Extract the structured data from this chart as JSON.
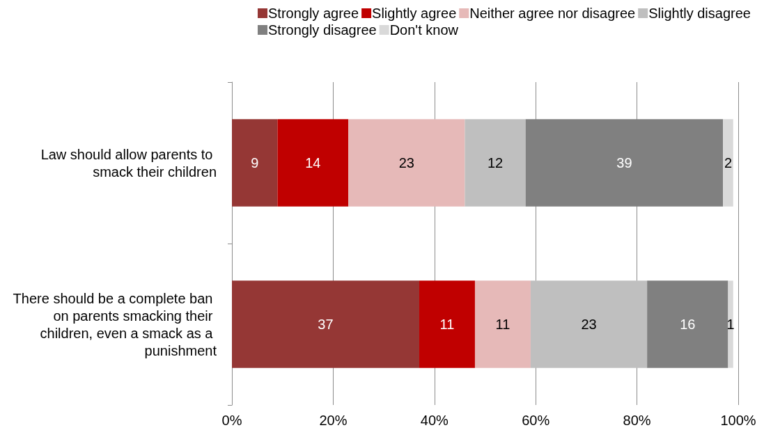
{
  "chart_data": {
    "type": "bar",
    "orientation": "horizontal",
    "stacked": true,
    "data_labels": true,
    "grid": "x",
    "legend": "top",
    "categories": [
      "Law should allow parents to smack their children",
      "There should be a complete ban on parents smacking their children, even a smack as a punishment"
    ],
    "series": [
      {
        "name": "Strongly agree",
        "color": "#953735",
        "values": [
          9,
          37
        ]
      },
      {
        "name": "Slightly agree",
        "color": "#c00000",
        "values": [
          14,
          11
        ]
      },
      {
        "name": "Neither agree nor disagree",
        "color": "#e6b9b8",
        "values": [
          23,
          11
        ]
      },
      {
        "name": "Slightly disagree",
        "color": "#bfbfbf",
        "values": [
          12,
          23
        ]
      },
      {
        "name": "Strongly disagree",
        "color": "#808080",
        "values": [
          39,
          16
        ]
      },
      {
        "name": "Don't know",
        "color": "#d9d9d9",
        "values": [
          2,
          1
        ]
      }
    ],
    "xlim": [
      0,
      100
    ],
    "xticks": [
      {
        "value": 0,
        "label": "0%"
      },
      {
        "value": 20,
        "label": "20%"
      },
      {
        "value": 40,
        "label": "40%"
      },
      {
        "value": 60,
        "label": "60%"
      },
      {
        "value": 80,
        "label": "80%"
      },
      {
        "value": 100,
        "label": "100%"
      }
    ]
  }
}
